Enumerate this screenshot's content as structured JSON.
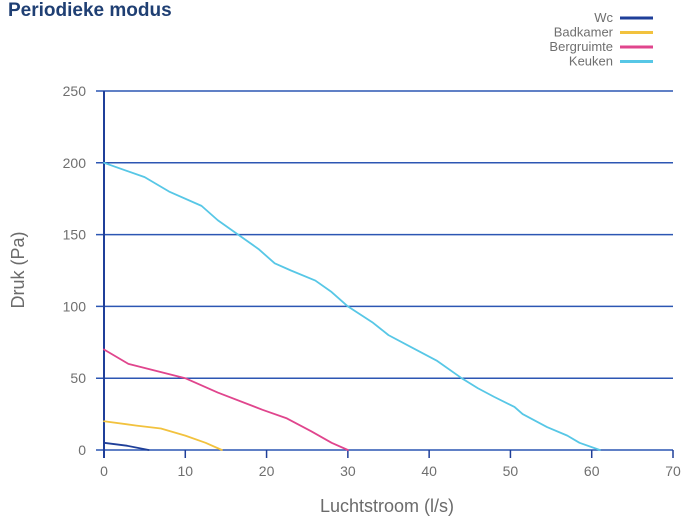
{
  "chart_data": {
    "type": "line",
    "title": "Periodieke modus",
    "xlabel": "Luchtstroom (l/s)",
    "ylabel": "Druk (Pa)",
    "xlim": [
      0,
      70
    ],
    "ylim": [
      0,
      250
    ],
    "x_ticks": [
      0,
      10,
      20,
      30,
      40,
      50,
      60,
      70
    ],
    "y_ticks": [
      0,
      50,
      100,
      150,
      200,
      250
    ],
    "grid": true,
    "legend_position": "top-right",
    "series": [
      {
        "name": "Wc",
        "color": "#1f3f99",
        "points": [
          [
            0,
            5
          ],
          [
            2.8,
            3
          ],
          [
            5.5,
            0
          ]
        ]
      },
      {
        "name": "Badkamer",
        "color": "#f2c23e",
        "points": [
          [
            0,
            20
          ],
          [
            4,
            17
          ],
          [
            7,
            15
          ],
          [
            10,
            10
          ],
          [
            12.5,
            5
          ],
          [
            14.5,
            0
          ]
        ]
      },
      {
        "name": "Bergruimte",
        "color": "#e0458d",
        "points": [
          [
            0,
            70
          ],
          [
            3,
            60
          ],
          [
            10,
            50
          ],
          [
            14,
            40
          ],
          [
            19.5,
            28
          ],
          [
            22.5,
            22
          ],
          [
            25.5,
            13
          ],
          [
            28,
            5
          ],
          [
            30,
            0
          ]
        ]
      },
      {
        "name": "Keuken",
        "color": "#57c7e6",
        "points": [
          [
            0,
            200
          ],
          [
            5,
            190
          ],
          [
            8,
            180
          ],
          [
            12,
            170
          ],
          [
            14,
            160
          ],
          [
            16,
            152
          ],
          [
            19,
            140
          ],
          [
            21,
            130
          ],
          [
            23,
            125
          ],
          [
            26,
            118
          ],
          [
            28,
            110
          ],
          [
            30,
            100
          ],
          [
            33,
            89
          ],
          [
            35,
            80
          ],
          [
            38,
            71
          ],
          [
            41,
            62
          ],
          [
            44,
            50
          ],
          [
            46,
            43
          ],
          [
            48,
            37
          ],
          [
            50.5,
            30
          ],
          [
            51.5,
            25
          ],
          [
            54.5,
            16
          ],
          [
            57,
            10
          ],
          [
            58.5,
            5
          ],
          [
            61,
            0
          ]
        ]
      }
    ]
  }
}
